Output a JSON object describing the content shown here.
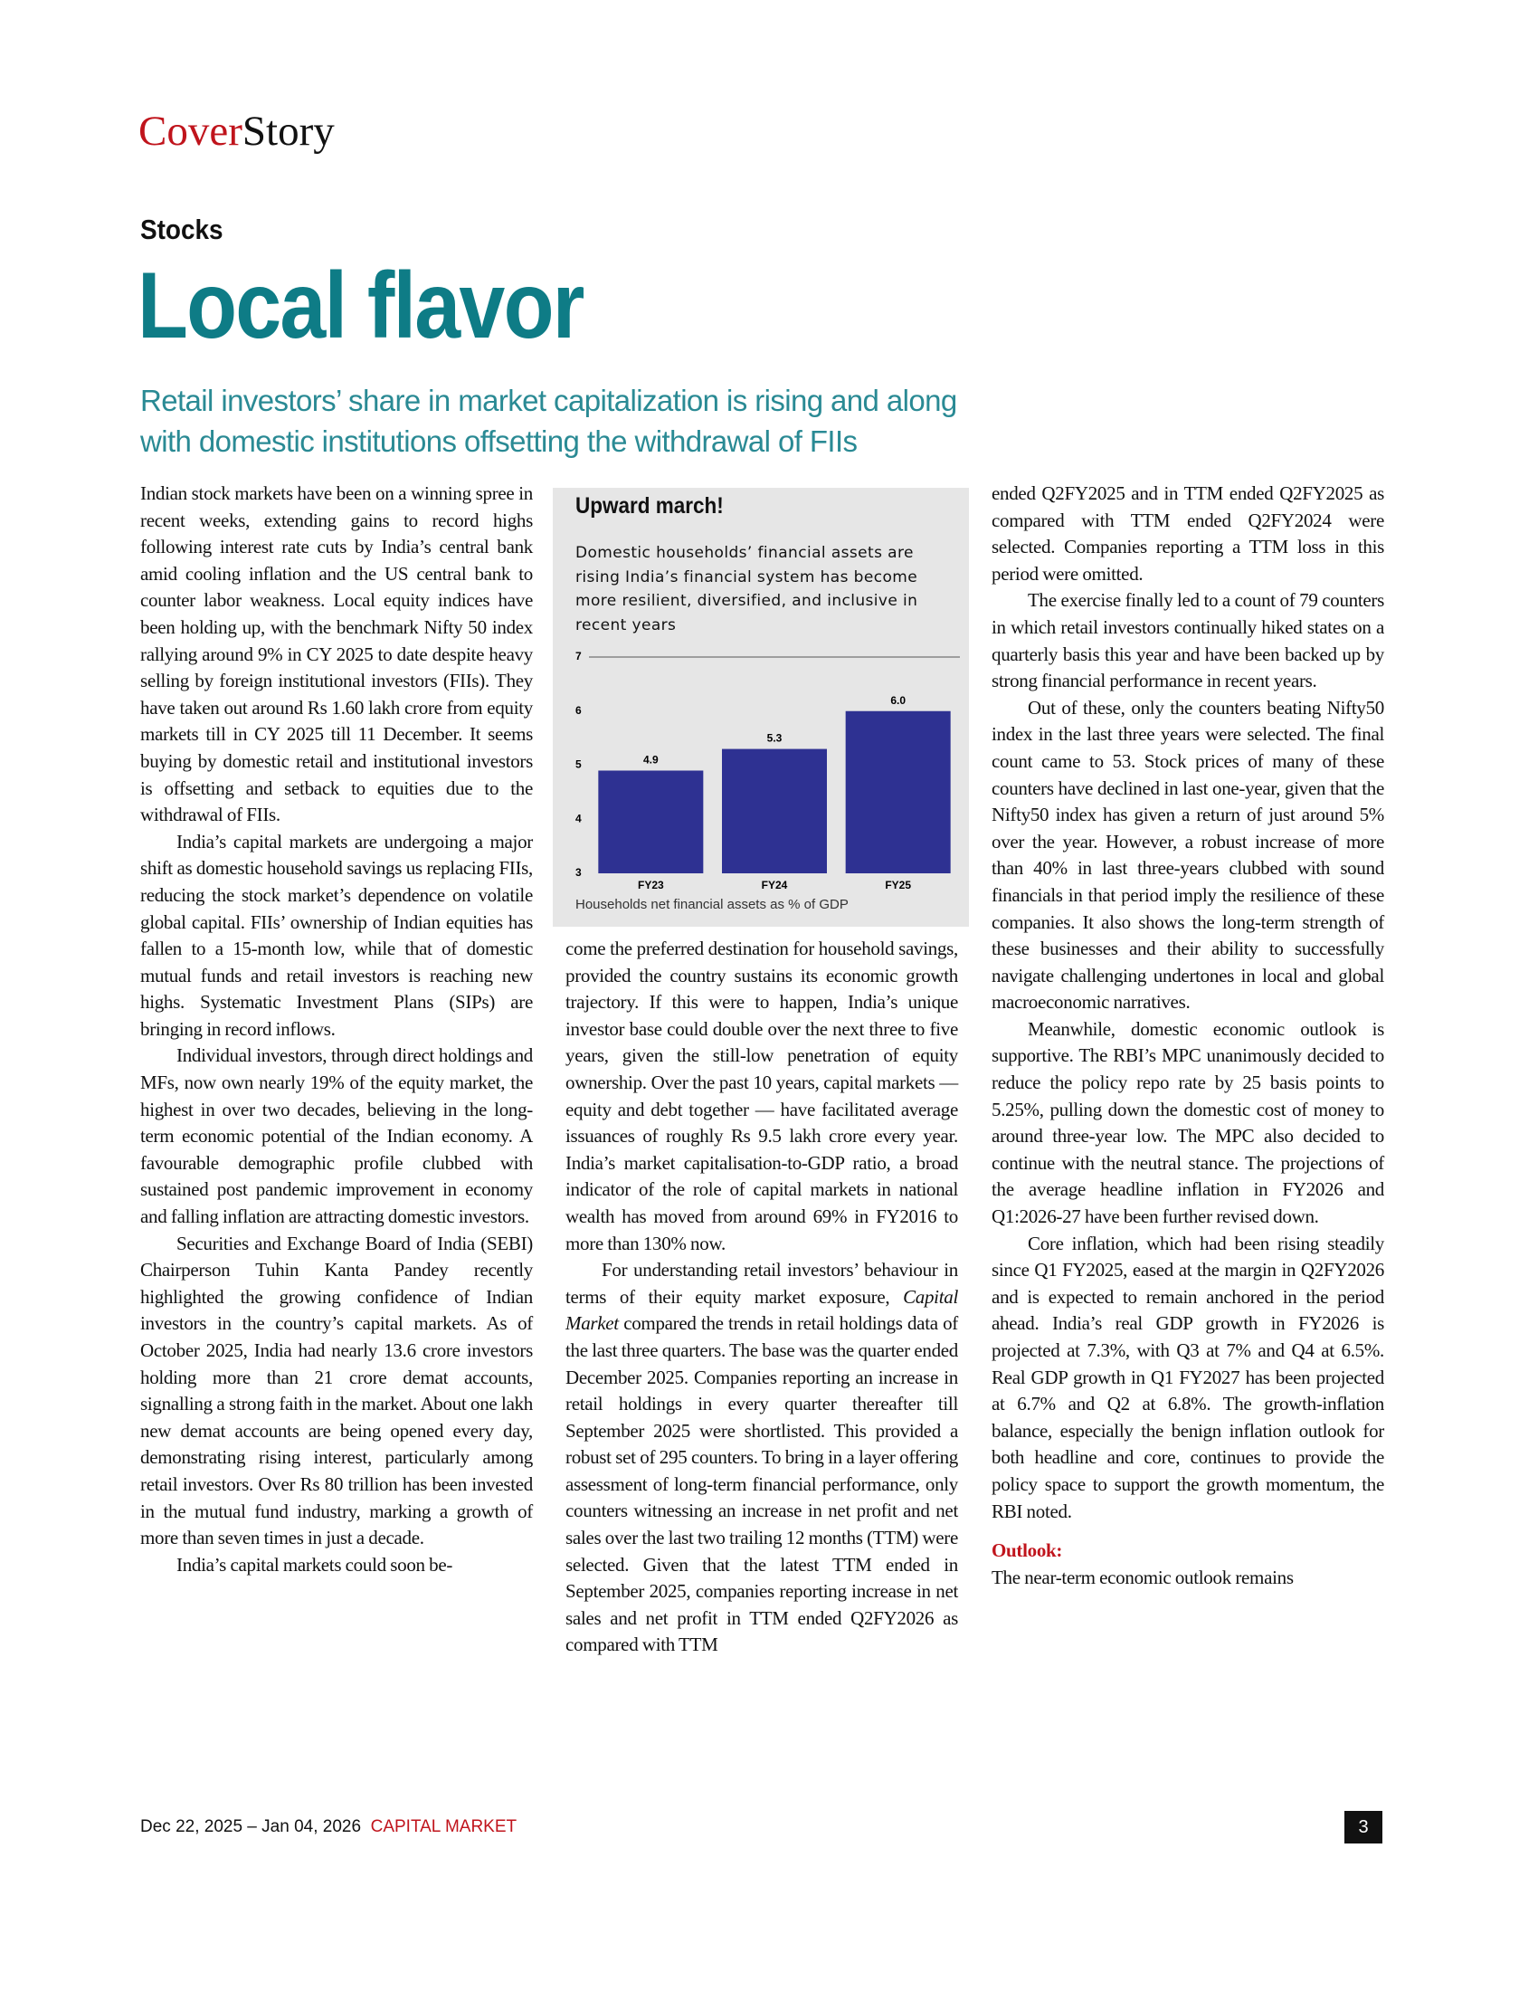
{
  "header": {
    "section_a": "Cover",
    "section_b": "Story",
    "kicker": "Stocks",
    "title": "Local flavor",
    "subtitle": "Retail investors’ share in market capitalization is rising and along with domestic institutions offsetting the withdrawal of FIIs"
  },
  "column_1": {
    "paragraphs": [
      "Indian stock markets have been on a winning spree in recent weeks, extending gains to record highs following interest rate cuts by India’s central bank amid cooling inflation and the US central bank to counter labor weakness. Local equity indices have been holding up, with the benchmark Nifty 50 index rallying around 9% in CY 2025 to date despite heavy selling by foreign institutional investors (FIIs). They have taken out around Rs 1.60 lakh crore from equity markets till in CY 2025 till 11 December. It seems buying by domestic retail and institutional investors is offsetting and setback to equities due to the withdrawal of FIIs.",
      "India’s capital markets are undergoing a major shift as domestic household savings us replacing FIIs, reducing the stock market’s dependence on volatile global capital. FIIs’ ownership of Indian equities has fallen to a 15-month low, while that of domestic mutual funds and retail investors is reaching new highs. Systematic Investment Plans (SIPs) are bringing in record inflows.",
      "Individual investors, through direct holdings and MFs, now own nearly 19% of the equity market, the highest in over two decades, believing in the long-term economic potential of the Indian economy. A favourable demographic profile clubbed with sustained post pandemic improvement in economy and falling inflation are attracting domestic investors.",
      "Securities and Exchange Board of India (SEBI) Chairperson Tuhin Kanta Pandey recently highlighted the growing confidence of Indian investors in the country’s capital markets. As of October 2025, India had nearly 13.6 crore investors holding more than 21 crore demat accounts, signalling a strong faith in the market. About one lakh new demat accounts are being opened every day, demonstrating rising interest, particularly among retail investors. Over Rs 80 trillion has been invested in the mutual fund industry, marking a growth of more than seven times in just a decade.",
      "India’s capital markets could soon be-"
    ]
  },
  "column_2": {
    "first": "come the preferred destination for household savings, provided the country sustains its economic growth trajectory. If this were to happen, India’s unique investor base could double over the next three to five years, given the still-low penetration of equity ownership. Over the past 10 years, capital markets — equity and debt together — have facilitated average issuances of roughly Rs 9.5 lakh crore every year. India’s market capitalisation-to-GDP ratio, a broad indicator of the role of capital markets in national wealth has moved from around 69% in FY2016 to more than 130% now.",
    "second_before": "For understanding retail investors’ behaviour in terms of their equity market exposure, ",
    "second_italic": "Capital Market",
    "second_after": " compared the trends in retail holdings data of the last three quarters. The base was the quarter ended December 2025. Companies reporting an increase in retail holdings in every quarter thereafter till September 2025 were shortlisted. This provided a robust set of 295 counters. To bring in a layer offering assessment of long-term financial performance, only counters witnessing an increase in net profit and net sales over the last two trailing 12 months (TTM) were selected. Given that the latest TTM ended in September 2025, companies reporting increase in net sales and net profit in TTM ended Q2FY2026 as compared with TTM"
  },
  "column_3": {
    "paragraphs": [
      "ended Q2FY2025 and in TTM ended Q2FY2025 as compared with TTM ended Q2FY2024 were selected. Companies reporting a TTM loss in this period were omitted.",
      "The exercise finally led to a count of 79 counters in which retail investors continually hiked states on a quarterly basis this year and have been backed up by strong financial performance in recent years.",
      "Out of these, only the counters beating Nifty50 index in the last three years were selected. The final count came to 53. Stock prices of many of these counters have declined in last one-year, given that the Nifty50 index has given a return of just around 5% over the year. However, a robust increase of more than 40% in last three-years clubbed with sound financials in that period imply the resilience of these companies. It also shows the long-term strength of these businesses and their ability to successfully navigate challenging undertones in local and global macroeconomic narratives.",
      "Meanwhile, domestic economic outlook is supportive. The RBI’s MPC unanimously decided to reduce the policy repo rate by 25 basis points to 5.25%, pulling down the domestic cost of money to around three-year low. The MPC also decided to continue with the neutral stance. The projections of the average headline inflation in FY2026 and Q1:2026-27 have been further revised down.",
      "Core inflation, which had been rising steadily since Q1 FY2025, eased at the margin in Q2FY2026 and is expected to remain anchored in the period ahead. India’s real GDP growth in FY2026 is projected at 7.3%, with Q3 at 7% and Q4 at 6.5%. Real GDP growth in Q1 FY2027 has been projected at 6.7% and Q2 at 6.8%. The growth-inflation balance, especially the benign inflation outlook for both headline and core, continues to provide the policy space to support the growth momentum, the RBI noted."
    ],
    "heading": "Outlook:",
    "last": "The near-term economic outlook remains"
  },
  "chart_data": {
    "type": "bar",
    "title": "Upward march!",
    "subtitle": "Domestic households’ financial assets are rising India’s financial system has become more resilient, diversified, and inclusive in recent years",
    "note": "Households net financial assets as % of GDP",
    "categories": [
      "FY23",
      "FY24",
      "FY25"
    ],
    "values": [
      4.9,
      5.3,
      6.0
    ],
    "value_labels": [
      "4.9",
      "5.3",
      "6.0"
    ],
    "color": "#2e3192",
    "ylim": [
      3,
      7
    ],
    "yticks": [
      3,
      4,
      5,
      6,
      7
    ]
  },
  "footer": {
    "date": "Dec 22, 2025 – Jan 04, 2026",
    "publication": "CAPITAL MARKET",
    "page": "3"
  }
}
